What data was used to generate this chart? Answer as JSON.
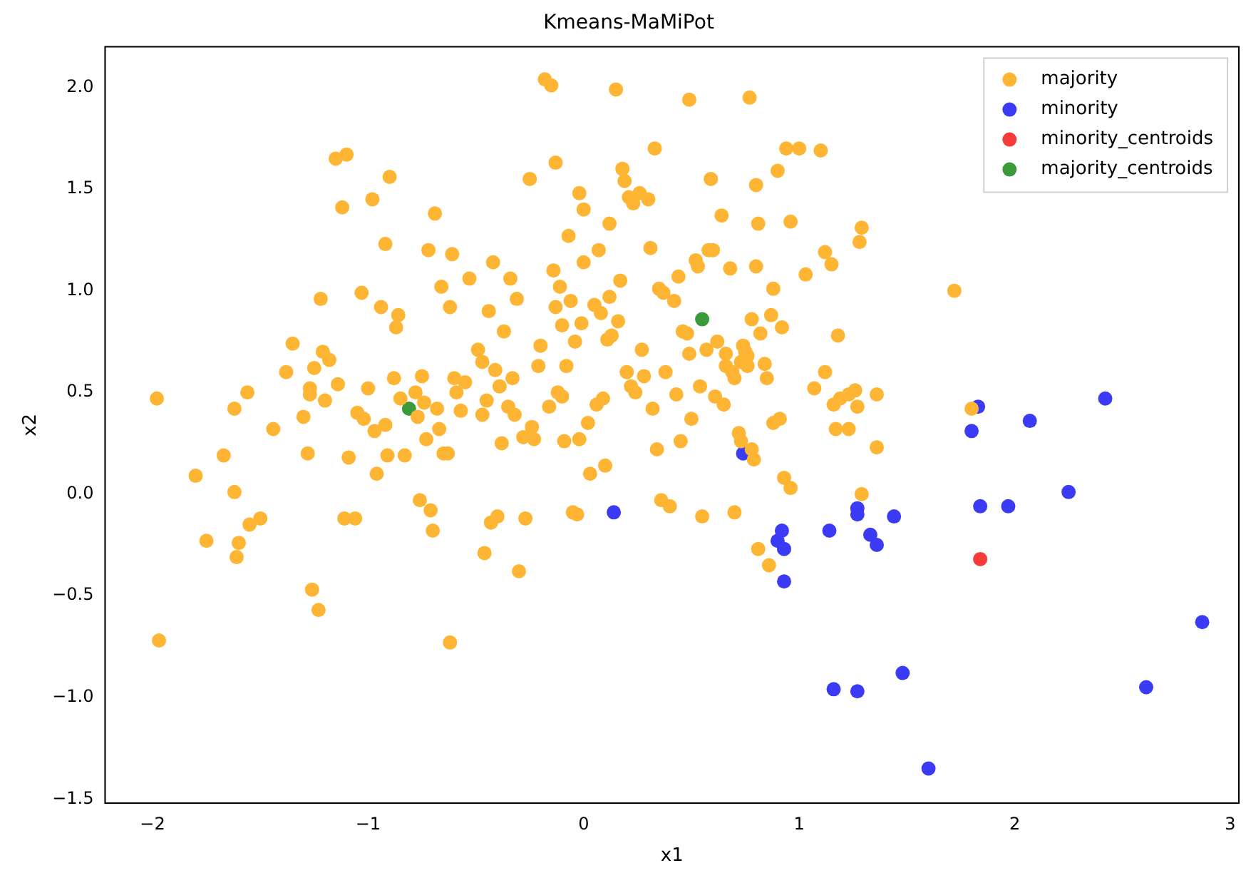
{
  "chart_data": {
    "type": "scatter",
    "title": "Kmeans-MaMiPot",
    "xlabel": "x1",
    "ylabel": "x2",
    "xlim": [
      -2.22,
      3.04
    ],
    "ylim": [
      -1.52,
      2.2
    ],
    "xticks": [
      {
        "value": -2,
        "label": "−2"
      },
      {
        "value": -1,
        "label": "−1"
      },
      0,
      1,
      2,
      3
    ],
    "yticks": [
      {
        "value": -1.5,
        "label": "−1.5"
      },
      {
        "value": -1,
        "label": "−1.0"
      },
      {
        "value": -0.5,
        "label": "−0.5"
      },
      {
        "value": 0,
        "label": "0.0"
      },
      0.5,
      {
        "value": 1,
        "label": "1.0"
      },
      1.5,
      {
        "value": 2,
        "label": "2.0"
      }
    ],
    "grid": false,
    "legend": "top right",
    "marker": "circle",
    "series": [
      {
        "name": "majority",
        "color": "#ffb534",
        "x": [
          -1.98,
          -1.97,
          -1.8,
          -1.75,
          -1.67,
          -1.62,
          -1.62,
          -1.61,
          -1.6,
          -1.56,
          -1.55,
          -1.5,
          -1.44,
          -1.38,
          -1.35,
          -1.3,
          -1.28,
          -1.27,
          -1.27,
          -1.26,
          -1.25,
          -1.23,
          -1.22,
          -1.21,
          -1.2,
          -1.18,
          -1.15,
          -1.14,
          -1.12,
          -1.11,
          -1.1,
          -1.09,
          -1.06,
          -1.05,
          -1.03,
          -1.02,
          -1,
          -0.98,
          -0.97,
          -0.96,
          -0.94,
          -0.92,
          -0.92,
          -0.91,
          -0.9,
          -0.88,
          -0.87,
          -0.86,
          -0.85,
          -0.83,
          -0.78,
          -0.77,
          -0.75,
          -0.76,
          -0.74,
          -0.73,
          -0.72,
          -0.71,
          -0.7,
          -0.69,
          -0.68,
          -0.67,
          -0.66,
          -0.65,
          -0.63,
          -0.62,
          -0.62,
          -0.61,
          -0.6,
          -0.59,
          -0.57,
          -0.55,
          -0.53,
          -0.49,
          -0.47,
          -0.47,
          -0.46,
          -0.45,
          -0.44,
          -0.43,
          -0.42,
          -0.41,
          -0.4,
          -0.39,
          -0.38,
          -0.37,
          -0.35,
          -0.34,
          -0.33,
          -0.32,
          -0.31,
          -0.3,
          -0.28,
          -0.27,
          -0.25,
          -0.24,
          -0.23,
          -0.21,
          -0.2,
          -0.18,
          -0.16,
          -0.15,
          -0.14,
          -0.13,
          -0.13,
          -0.12,
          -0.11,
          -0.1,
          -0.1,
          -0.09,
          -0.08,
          -0.07,
          -0.06,
          -0.05,
          -0.04,
          -0.03,
          -0.02,
          -0.02,
          0,
          -0.01,
          0,
          0.02,
          0.03,
          0.05,
          0.06,
          0.07,
          0.08,
          0.09,
          0.1,
          0.11,
          0.12,
          0.12,
          0.13,
          0.15,
          0.16,
          0.17,
          0.18,
          0.19,
          0.2,
          0.21,
          0.22,
          0.23,
          0.24,
          0.26,
          0.27,
          0.28,
          0.3,
          0.31,
          0.32,
          0.33,
          0.34,
          0.35,
          0.36,
          0.37,
          0.38,
          0.4,
          0.42,
          0.43,
          0.44,
          0.45,
          0.46,
          0.48,
          0.49,
          0.49,
          0.5,
          0.52,
          0.53,
          0.54,
          0.55,
          0.57,
          0.58,
          0.59,
          0.6,
          0.61,
          0.62,
          0.64,
          0.65,
          0.66,
          0.66,
          0.68,
          0.69,
          0.7,
          0.7,
          0.72,
          0.73,
          0.73,
          0.74,
          0.75,
          0.76,
          0.76,
          0.77,
          0.78,
          0.78,
          0.79,
          0.8,
          0.8,
          0.81,
          0.82,
          0.84,
          0.85,
          0.86,
          0.87,
          0.88,
          0.88,
          0.9,
          0.91,
          0.92,
          0.93,
          0.94,
          0.96,
          0.96,
          1,
          1.03,
          1.07,
          1.1,
          1.12,
          1.12,
          1.15,
          1.16,
          1.17,
          1.18,
          1.19,
          1.23,
          1.23,
          1.26,
          1.27,
          1.28,
          1.29,
          1.29,
          1.36,
          1.36,
          1.72,
          1.8,
          0.81
        ],
        "values": [
          0.47,
          -0.72,
          0.09,
          -0.23,
          0.19,
          0.42,
          0.01,
          -0.31,
          -0.24,
          0.5,
          -0.15,
          -0.12,
          0.32,
          0.6,
          0.74,
          0.38,
          0.2,
          0.52,
          0.49,
          -0.47,
          0.62,
          -0.57,
          0.96,
          0.7,
          0.46,
          0.66,
          1.65,
          0.54,
          1.41,
          -0.12,
          1.67,
          0.18,
          -0.12,
          0.4,
          0.99,
          0.37,
          0.52,
          1.45,
          0.31,
          0.1,
          0.92,
          1.23,
          0.34,
          0.19,
          1.56,
          0.57,
          0.82,
          0.88,
          0.47,
          0.19,
          0.5,
          0.38,
          0.58,
          -0.03,
          0.45,
          0.27,
          1.2,
          -0.08,
          -0.18,
          1.38,
          0.42,
          0.32,
          1.02,
          0.2,
          0.2,
          0.92,
          -0.73,
          1.18,
          0.57,
          0.5,
          0.41,
          0.55,
          1.06,
          0.71,
          0.39,
          0.65,
          -0.29,
          0.46,
          0.9,
          -0.14,
          1.14,
          0.61,
          -0.11,
          0.53,
          0.25,
          0.8,
          0.43,
          1.06,
          0.57,
          0.39,
          0.96,
          -0.38,
          0.28,
          -0.12,
          1.55,
          0.33,
          0.27,
          0.63,
          0.73,
          2.04,
          0.43,
          2.01,
          1.1,
          0.92,
          1.63,
          0.5,
          1.02,
          0.83,
          0.48,
          0.26,
          0.63,
          1.27,
          0.95,
          -0.09,
          0.75,
          -0.1,
          1.48,
          0.27,
          1.14,
          0.84,
          1.4,
          0.35,
          0.1,
          0.93,
          0.44,
          1.2,
          0.89,
          0.47,
          0.14,
          0.76,
          0.97,
          1.33,
          0.78,
          1.99,
          0.85,
          1.05,
          1.6,
          1.54,
          0.6,
          1.46,
          0.53,
          1.43,
          0.5,
          1.48,
          0.71,
          0.58,
          1.45,
          1.21,
          0.42,
          1.7,
          0.22,
          1.01,
          -0.03,
          0.99,
          0.6,
          -0.06,
          0.95,
          0.49,
          1.07,
          0.26,
          0.8,
          0.79,
          1.94,
          0.69,
          0.37,
          1.15,
          1.12,
          0.53,
          -0.11,
          0.71,
          1.2,
          1.55,
          1.2,
          0.48,
          0.75,
          1.37,
          0.44,
          0.69,
          0.63,
          1.11,
          0.6,
          0.57,
          -0.09,
          0.3,
          0.26,
          0.65,
          0.73,
          0.7,
          0.68,
          0.63,
          1.95,
          0.86,
          0.22,
          0.17,
          1.52,
          1.12,
          1.33,
          0.79,
          0.64,
          0.57,
          -0.35,
          0.88,
          1.01,
          0.35,
          1.59,
          0.37,
          0.82,
          0.08,
          1.7,
          1.34,
          0.03,
          1.7,
          1.08,
          0.52,
          1.69,
          1.19,
          0.6,
          1.13,
          0.44,
          0.32,
          0.78,
          0.47,
          0.49,
          0.32,
          0.51,
          0.43,
          1.24,
          1.31,
          0,
          0.23,
          0.49,
          1,
          0.42,
          -0.27
        ]
      },
      {
        "name": "minority",
        "color": "#3b3bf6",
        "x": [
          0.74,
          0.14,
          0.92,
          0.9,
          0.93,
          0.93,
          1.14,
          1.27,
          1.27,
          1.33,
          1.36,
          1.44,
          1.8,
          1.83,
          1.84,
          1.97,
          2.07,
          2.25,
          2.42,
          2.87,
          2.61,
          1.48,
          1.16,
          1.27,
          1.6
        ],
        "values": [
          0.2,
          -0.09,
          -0.18,
          -0.23,
          -0.27,
          -0.43,
          -0.18,
          -0.07,
          -0.1,
          -0.2,
          -0.25,
          -0.11,
          0.31,
          0.43,
          -0.06,
          -0.06,
          0.36,
          0.01,
          0.47,
          -0.63,
          -0.95,
          -0.88,
          -0.96,
          -0.97,
          -1.35
        ]
      },
      {
        "name": "minority_centroids",
        "color": "#f63b3b",
        "x": [
          1.84
        ],
        "values": [
          -0.32
        ]
      },
      {
        "name": "majority_centroids",
        "color": "#3b9b3b",
        "x": [
          -0.81,
          0.55
        ],
        "values": [
          0.42,
          0.86
        ]
      }
    ]
  }
}
